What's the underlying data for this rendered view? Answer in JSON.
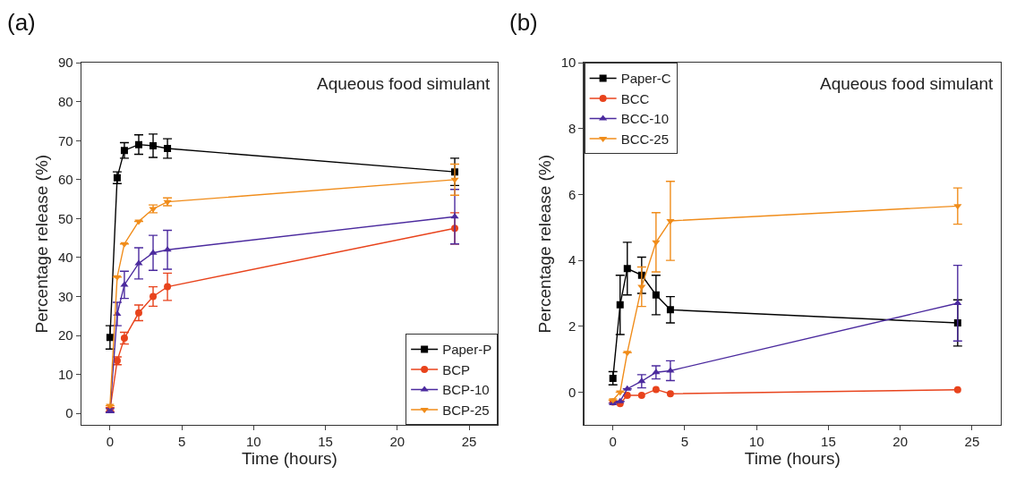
{
  "chart_data": [
    {
      "type": "line",
      "x": [
        0,
        0.5,
        1,
        2,
        3,
        4,
        24
      ],
      "xlabel": "Time (hours)",
      "ylabel": "Percentage release (%)",
      "xlim": [
        -2,
        27
      ],
      "xticks": [
        0,
        5,
        10,
        15,
        20,
        25
      ],
      "ylim": [
        -3,
        90
      ],
      "yticks": [
        0,
        10,
        20,
        30,
        40,
        50,
        60,
        70,
        80,
        90
      ],
      "grid": false,
      "legend": "bottom right",
      "annotations": [
        "(a)",
        "Aqueous food simulant"
      ],
      "series": [
        {
          "name": "Paper-P",
          "color": "#000000",
          "marker": "square",
          "values": [
            19.5,
            60.5,
            67.5,
            69,
            68.7,
            68,
            62
          ],
          "errors": [
            3,
            1.5,
            2,
            2.5,
            3,
            2.5,
            3.5
          ]
        },
        {
          "name": "BCP",
          "color": "#e8431c",
          "marker": "circle",
          "values": [
            1,
            13.5,
            19.3,
            25.8,
            30,
            32.5,
            47.5
          ],
          "errors": [
            0.5,
            1,
            1.5,
            2,
            2.5,
            3.5,
            4
          ]
        },
        {
          "name": "BCP-10",
          "color": "#4b2a9e",
          "marker": "triangle",
          "values": [
            0.7,
            25.5,
            33,
            38.5,
            41.2,
            42,
            50.5
          ],
          "errors": [
            0.5,
            3,
            3.5,
            4,
            4.5,
            5,
            7
          ]
        },
        {
          "name": "BCP-25",
          "color": "#f08c1a",
          "marker": "triangle-down",
          "values": [
            2,
            35,
            43.5,
            49.3,
            52.5,
            54.3,
            60
          ],
          "errors": [
            null,
            null,
            null,
            null,
            1,
            1,
            4
          ]
        }
      ]
    },
    {
      "type": "line",
      "x": [
        0,
        0.5,
        1,
        2,
        3,
        4,
        24
      ],
      "xlabel": "Time (hours)",
      "ylabel": "Percentage release (%)",
      "xlim": [
        -2,
        27
      ],
      "xticks": [
        0,
        5,
        10,
        15,
        20,
        25
      ],
      "ylim": [
        -1,
        10
      ],
      "yticks": [
        0,
        2,
        4,
        6,
        8,
        10
      ],
      "grid": false,
      "legend": "top left",
      "annotations": [
        "(b)",
        "Aqueous food simulant"
      ],
      "series": [
        {
          "name": "Paper-C",
          "color": "#000000",
          "marker": "square",
          "values": [
            0.42,
            2.65,
            3.75,
            3.55,
            2.95,
            2.5,
            2.1
          ],
          "errors": [
            0.2,
            0.9,
            0.8,
            0.55,
            0.6,
            0.4,
            0.7
          ]
        },
        {
          "name": "BCC",
          "color": "#e8431c",
          "marker": "circle",
          "values": [
            -0.3,
            -0.35,
            -0.1,
            -0.1,
            0.08,
            -0.05,
            0.07
          ]
        },
        {
          "name": "BCC-10",
          "color": "#4b2a9e",
          "marker": "triangle",
          "values": [
            -0.34,
            -0.28,
            0.1,
            0.33,
            0.6,
            0.65,
            2.7
          ],
          "errors": [
            null,
            null,
            null,
            0.2,
            0.2,
            0.3,
            1.15
          ]
        },
        {
          "name": "BCC-25",
          "color": "#f08c1a",
          "marker": "triangle-down",
          "values": [
            -0.24,
            0.0,
            1.2,
            3.2,
            4.55,
            5.2,
            5.65
          ],
          "errors": [
            null,
            null,
            null,
            0.6,
            0.9,
            1.2,
            0.55
          ]
        }
      ]
    }
  ]
}
